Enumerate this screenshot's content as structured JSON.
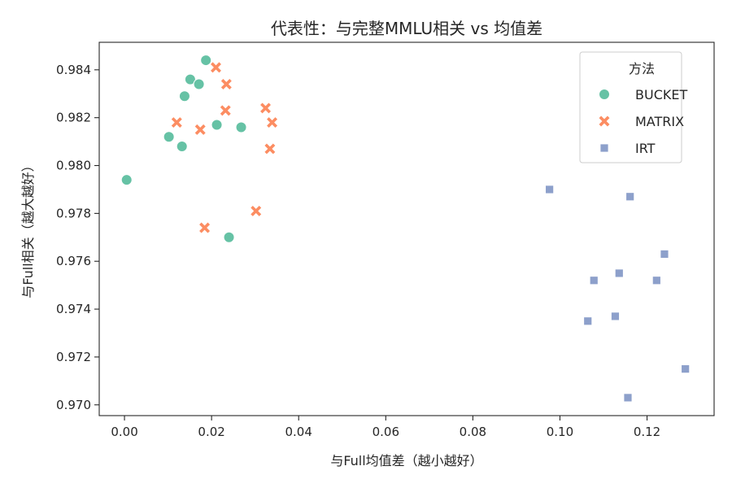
{
  "chart_data": {
    "type": "scatter",
    "title": "代表性：与完整MMLU相关 vs 均值差",
    "xlabel": "与Full均值差（越小越好）",
    "ylabel": "与Full相关（越大越好）",
    "xlim": [
      -0.0058,
      0.1354
    ],
    "ylim": [
      0.96955,
      0.98515
    ],
    "x_ticks": [
      0.0,
      0.02,
      0.04,
      0.06,
      0.08,
      0.1,
      0.12
    ],
    "x_tick_labels": [
      "0.00",
      "0.02",
      "0.04",
      "0.06",
      "0.08",
      "0.10",
      "0.12"
    ],
    "y_ticks": [
      0.97,
      0.972,
      0.974,
      0.976,
      0.978,
      0.98,
      0.982,
      0.984
    ],
    "y_tick_labels": [
      "0.970",
      "0.972",
      "0.974",
      "0.976",
      "0.978",
      "0.980",
      "0.982",
      "0.984"
    ],
    "grid": false,
    "legend": {
      "title": "方法",
      "placement": "top-right"
    },
    "series": [
      {
        "name": "BUCKET",
        "marker": "circle",
        "color": "#66c2a5",
        "points": [
          [
            0.0005,
            0.9794
          ],
          [
            0.0102,
            0.9812
          ],
          [
            0.0132,
            0.9808
          ],
          [
            0.0138,
            0.9829
          ],
          [
            0.0151,
            0.9836
          ],
          [
            0.0171,
            0.9834
          ],
          [
            0.0187,
            0.9844
          ],
          [
            0.0212,
            0.9817
          ],
          [
            0.0268,
            0.9816
          ],
          [
            0.024,
            0.977
          ]
        ]
      },
      {
        "name": "MATRIX",
        "marker": "x",
        "color": "#fc8d62",
        "points": [
          [
            0.012,
            0.9818
          ],
          [
            0.0174,
            0.9815
          ],
          [
            0.021,
            0.9841
          ],
          [
            0.0234,
            0.9834
          ],
          [
            0.0232,
            0.9823
          ],
          [
            0.0324,
            0.9824
          ],
          [
            0.0339,
            0.9818
          ],
          [
            0.0334,
            0.9807
          ],
          [
            0.0302,
            0.9781
          ],
          [
            0.0184,
            0.9774
          ]
        ]
      },
      {
        "name": "IRT",
        "marker": "square",
        "color": "#8da0cb",
        "points": [
          [
            0.0976,
            0.979
          ],
          [
            0.1161,
            0.9787
          ],
          [
            0.1078,
            0.9752
          ],
          [
            0.1136,
            0.9755
          ],
          [
            0.124,
            0.9763
          ],
          [
            0.1222,
            0.9752
          ],
          [
            0.1127,
            0.9737
          ],
          [
            0.1064,
            0.9735
          ],
          [
            0.1288,
            0.9715
          ],
          [
            0.1156,
            0.9703
          ]
        ]
      }
    ]
  }
}
